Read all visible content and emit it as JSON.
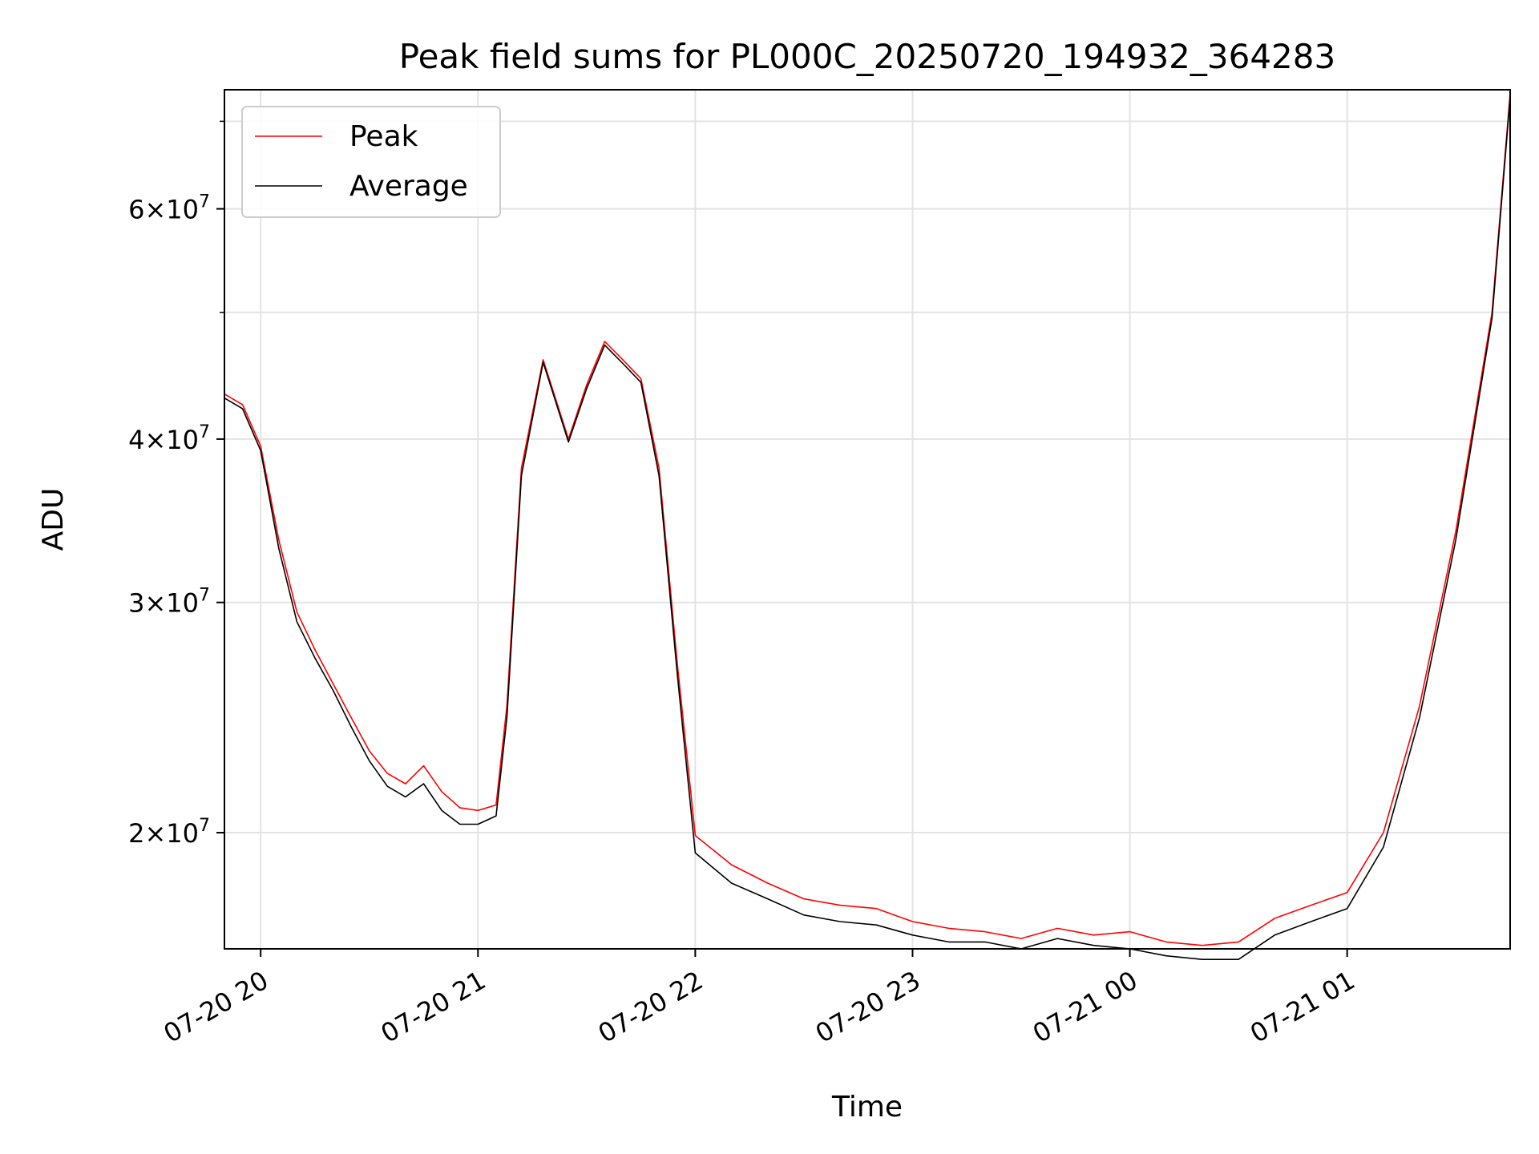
{
  "chart_data": {
    "type": "line",
    "title": "Peak field sums for PL000C_20250720_194932_364283",
    "xlabel": "Time",
    "ylabel": "ADU",
    "yscale": "log",
    "ylim": [
      16300000,
      74000000
    ],
    "xlim": [
      "2025-07-20 19:50",
      "2025-07-21 01:45"
    ],
    "grid": true,
    "legend_position": "top-left",
    "x_ticks": [
      {
        "t": "2025-07-20 20:00",
        "label": "07-20 20"
      },
      {
        "t": "2025-07-20 21:00",
        "label": "07-20 21"
      },
      {
        "t": "2025-07-20 22:00",
        "label": "07-20 22"
      },
      {
        "t": "2025-07-20 23:00",
        "label": "07-20 23"
      },
      {
        "t": "2025-07-21 00:00",
        "label": "07-21 00"
      },
      {
        "t": "2025-07-21 01:00",
        "label": "07-21 01"
      }
    ],
    "y_ticks": [
      {
        "value": 20000000,
        "mantissa": "2",
        "base": "10",
        "exp": "7"
      },
      {
        "value": 30000000,
        "mantissa": "3",
        "base": "10",
        "exp": "7"
      },
      {
        "value": 40000000,
        "mantissa": "4",
        "base": "10",
        "exp": "7"
      },
      {
        "value": 60000000,
        "mantissa": "6",
        "base": "10",
        "exp": "7"
      }
    ],
    "y_minor_ticks": [
      50000000,
      70000000
    ],
    "series": [
      {
        "name": "Peak",
        "color": "#ff0000",
        "points": [
          [
            "2025-07-20 19:50",
            43300000
          ],
          [
            "2025-07-20 19:55",
            42500000
          ],
          [
            "2025-07-20 20:00",
            39500000
          ],
          [
            "2025-07-20 20:05",
            33500000
          ],
          [
            "2025-07-20 20:10",
            29500000
          ],
          [
            "2025-07-20 20:15",
            27600000
          ],
          [
            "2025-07-20 20:20",
            26000000
          ],
          [
            "2025-07-20 20:25",
            24500000
          ],
          [
            "2025-07-20 20:30",
            23100000
          ],
          [
            "2025-07-20 20:35",
            22200000
          ],
          [
            "2025-07-20 20:40",
            21800000
          ],
          [
            "2025-07-20 20:45",
            22500000
          ],
          [
            "2025-07-20 20:50",
            21500000
          ],
          [
            "2025-07-20 20:55",
            20900000
          ],
          [
            "2025-07-20 21:00",
            20800000
          ],
          [
            "2025-07-20 21:05",
            21000000
          ],
          [
            "2025-07-20 21:08",
            25000000
          ],
          [
            "2025-07-20 21:12",
            38000000
          ],
          [
            "2025-07-20 21:18",
            46000000
          ],
          [
            "2025-07-20 21:25",
            40000000
          ],
          [
            "2025-07-20 21:30",
            44000000
          ],
          [
            "2025-07-20 21:35",
            47500000
          ],
          [
            "2025-07-20 21:40",
            46000000
          ],
          [
            "2025-07-20 21:45",
            44500000
          ],
          [
            "2025-07-20 21:50",
            38000000
          ],
          [
            "2025-07-20 21:55",
            27000000
          ],
          [
            "2025-07-20 22:00",
            19900000
          ],
          [
            "2025-07-20 22:10",
            18900000
          ],
          [
            "2025-07-20 22:20",
            18300000
          ],
          [
            "2025-07-20 22:30",
            17800000
          ],
          [
            "2025-07-20 22:40",
            17600000
          ],
          [
            "2025-07-20 22:50",
            17500000
          ],
          [
            "2025-07-20 23:00",
            17100000
          ],
          [
            "2025-07-20 23:10",
            16900000
          ],
          [
            "2025-07-20 23:20",
            16800000
          ],
          [
            "2025-07-20 23:30",
            16600000
          ],
          [
            "2025-07-20 23:40",
            16900000
          ],
          [
            "2025-07-20 23:50",
            16700000
          ],
          [
            "2025-07-21 00:00",
            16800000
          ],
          [
            "2025-07-21 00:10",
            16500000
          ],
          [
            "2025-07-21 00:20",
            16400000
          ],
          [
            "2025-07-21 00:30",
            16500000
          ],
          [
            "2025-07-21 00:40",
            17200000
          ],
          [
            "2025-07-21 00:50",
            17600000
          ],
          [
            "2025-07-21 01:00",
            18000000
          ],
          [
            "2025-07-21 01:10",
            20000000
          ],
          [
            "2025-07-21 01:20",
            25000000
          ],
          [
            "2025-07-21 01:30",
            34000000
          ],
          [
            "2025-07-21 01:40",
            50000000
          ],
          [
            "2025-07-21 01:45",
            73500000
          ]
        ]
      },
      {
        "name": "Average",
        "color": "#000000",
        "points": [
          [
            "2025-07-20 19:50",
            43000000
          ],
          [
            "2025-07-20 19:55",
            42200000
          ],
          [
            "2025-07-20 20:00",
            39200000
          ],
          [
            "2025-07-20 20:05",
            33000000
          ],
          [
            "2025-07-20 20:10",
            29000000
          ],
          [
            "2025-07-20 20:15",
            27200000
          ],
          [
            "2025-07-20 20:20",
            25700000
          ],
          [
            "2025-07-20 20:25",
            24100000
          ],
          [
            "2025-07-20 20:30",
            22700000
          ],
          [
            "2025-07-20 20:35",
            21700000
          ],
          [
            "2025-07-20 20:40",
            21300000
          ],
          [
            "2025-07-20 20:45",
            21800000
          ],
          [
            "2025-07-20 20:50",
            20800000
          ],
          [
            "2025-07-20 20:55",
            20300000
          ],
          [
            "2025-07-20 21:00",
            20300000
          ],
          [
            "2025-07-20 21:05",
            20600000
          ],
          [
            "2025-07-20 21:08",
            24500000
          ],
          [
            "2025-07-20 21:12",
            37500000
          ],
          [
            "2025-07-20 21:18",
            45800000
          ],
          [
            "2025-07-20 21:25",
            39800000
          ],
          [
            "2025-07-20 21:30",
            43700000
          ],
          [
            "2025-07-20 21:35",
            47200000
          ],
          [
            "2025-07-20 21:40",
            45700000
          ],
          [
            "2025-07-20 21:45",
            44200000
          ],
          [
            "2025-07-20 21:50",
            37500000
          ],
          [
            "2025-07-20 21:55",
            26500000
          ],
          [
            "2025-07-20 22:00",
            19300000
          ],
          [
            "2025-07-20 22:10",
            18300000
          ],
          [
            "2025-07-20 22:20",
            17800000
          ],
          [
            "2025-07-20 22:30",
            17300000
          ],
          [
            "2025-07-20 22:40",
            17100000
          ],
          [
            "2025-07-20 22:50",
            17000000
          ],
          [
            "2025-07-20 23:00",
            16700000
          ],
          [
            "2025-07-20 23:10",
            16500000
          ],
          [
            "2025-07-20 23:20",
            16500000
          ],
          [
            "2025-07-20 23:30",
            16300000
          ],
          [
            "2025-07-20 23:40",
            16600000
          ],
          [
            "2025-07-20 23:50",
            16400000
          ],
          [
            "2025-07-21 00:00",
            16300000
          ],
          [
            "2025-07-21 00:10",
            16100000
          ],
          [
            "2025-07-21 00:20",
            16000000
          ],
          [
            "2025-07-21 00:30",
            16000000
          ],
          [
            "2025-07-21 00:40",
            16700000
          ],
          [
            "2025-07-21 00:50",
            17100000
          ],
          [
            "2025-07-21 01:00",
            17500000
          ],
          [
            "2025-07-21 01:10",
            19500000
          ],
          [
            "2025-07-21 01:20",
            24500000
          ],
          [
            "2025-07-21 01:30",
            33500000
          ],
          [
            "2025-07-21 01:40",
            49500000
          ],
          [
            "2025-07-21 01:45",
            73000000
          ]
        ]
      }
    ]
  }
}
